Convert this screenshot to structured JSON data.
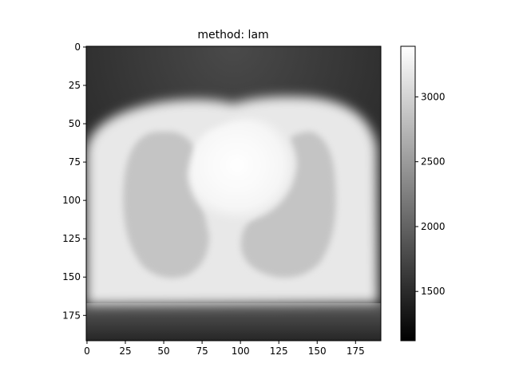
{
  "chart_data": {
    "type": "heatmap",
    "title": "method: lam",
    "colormap": "gray",
    "image_shape": [
      192,
      192
    ],
    "x_ticks": [
      0,
      25,
      50,
      75,
      100,
      125,
      150,
      175
    ],
    "y_ticks": [
      0,
      25,
      50,
      75,
      100,
      125,
      150,
      175
    ],
    "xlim": [
      -0.5,
      191.5
    ],
    "ylim": [
      191.5,
      -0.5
    ],
    "colorbar": {
      "range": [
        1120,
        3390
      ],
      "ticks": [
        1500,
        2000,
        2500,
        3000
      ]
    },
    "regions": [
      {
        "name": "body",
        "value": 2900
      },
      {
        "name": "left-lung",
        "value": 2550
      },
      {
        "name": "right-lung",
        "value": 2550
      },
      {
        "name": "heart",
        "value": 3350
      },
      {
        "name": "bottom-band",
        "value": 1450
      },
      {
        "name": "corners",
        "value": 1150
      }
    ]
  }
}
